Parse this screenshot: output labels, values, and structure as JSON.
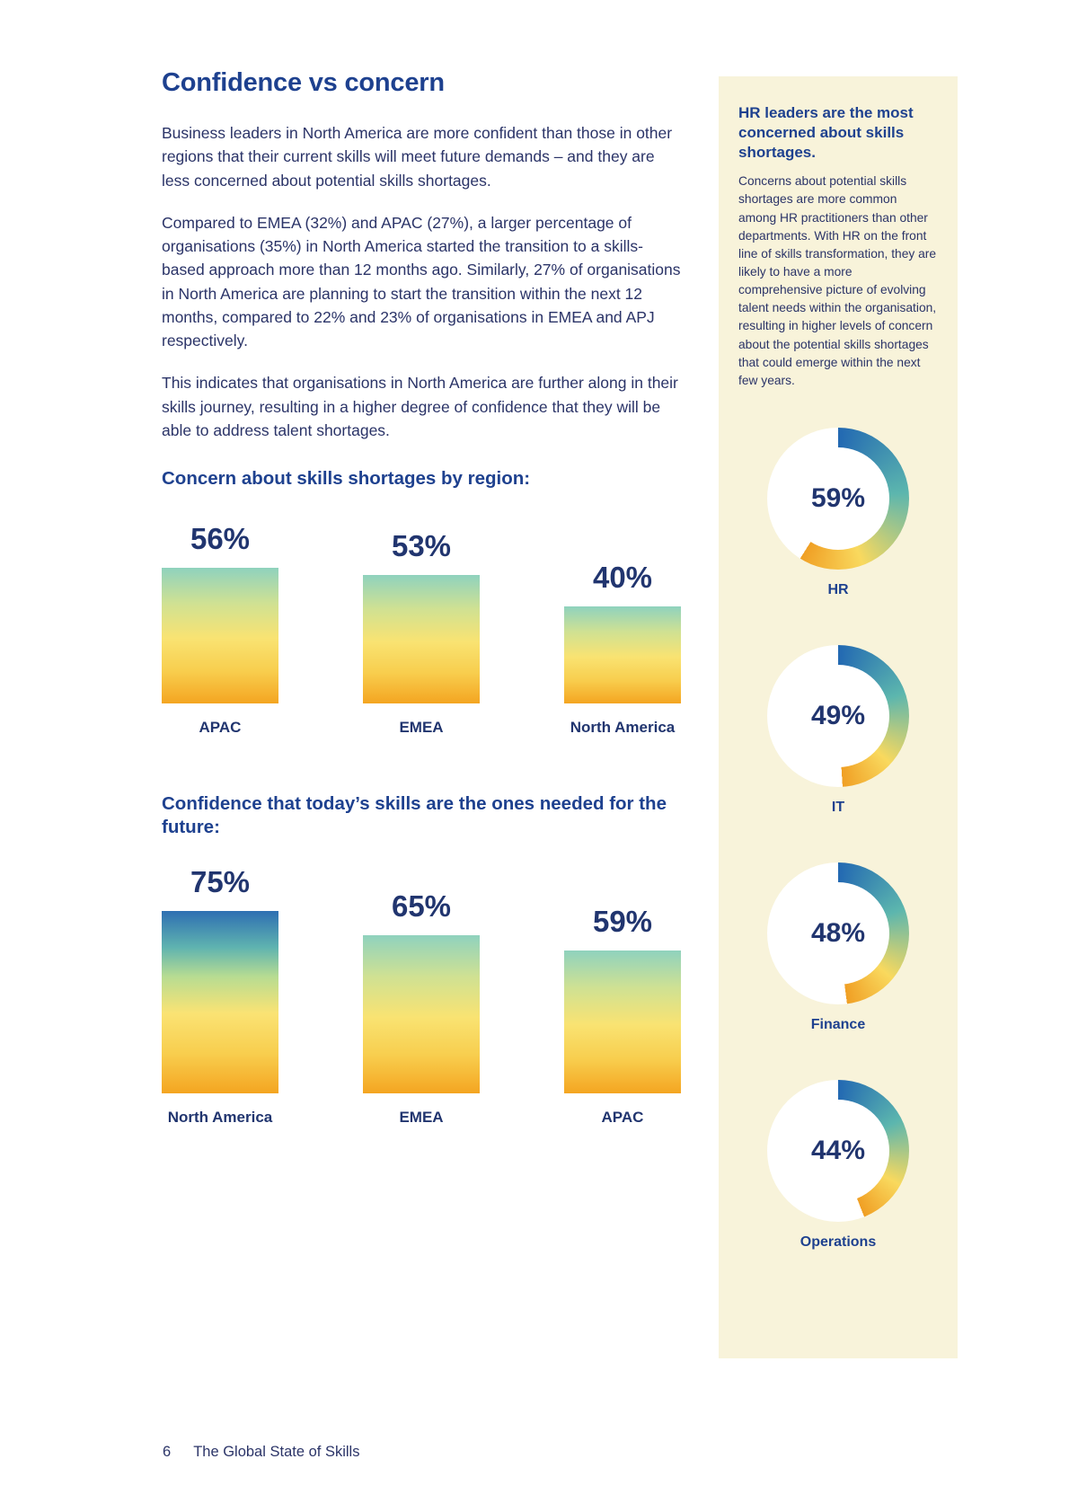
{
  "main": {
    "heading": "Confidence vs concern",
    "paragraphs": [
      "Business leaders in North America are more confident than those in other regions that their current skills will meet future demands – and they are less concerned about potential skills shortages.",
      "Compared to EMEA (32%) and APAC (27%), a larger percentage of organisations (35%) in North America started the transition to a skills-based approach more than 12 months ago. Similarly, 27% of organisations in North America are planning to start the transition within the next 12 months, compared to 22% and 23% of organisations in EMEA and APJ respectively.",
      "This indicates that organisations in North America are further along in their skills journey, resulting in a higher degree of confidence that they will be able to address talent shortages."
    ]
  },
  "chart_data": [
    {
      "type": "bar",
      "title": "Concern about skills shortages by region:",
      "categories": [
        "APAC",
        "EMEA",
        "North America"
      ],
      "values": [
        56,
        53,
        40
      ],
      "display_values": [
        "56%",
        "53%",
        "40%"
      ],
      "unit": "%",
      "ylim": [
        0,
        100
      ],
      "grid": false,
      "legend": "none"
    },
    {
      "type": "bar",
      "title": "Confidence that today’s skills are the ones needed for the future:",
      "categories": [
        "North America",
        "EMEA",
        "APAC"
      ],
      "values": [
        75,
        65,
        59
      ],
      "display_values": [
        "75%",
        "65%",
        "59%"
      ],
      "unit": "%",
      "ylim": [
        0,
        100
      ],
      "grid": false,
      "legend": "none"
    },
    {
      "type": "pie",
      "title": "",
      "categories": [
        "HR",
        "IT",
        "Finance",
        "Operations"
      ],
      "values": [
        59,
        49,
        48,
        44
      ],
      "display_values": [
        "59%",
        "49%",
        "48%",
        "44%"
      ],
      "unit": "%"
    }
  ],
  "sidebar": {
    "heading": "HR leaders are the most concerned about skills shortages.",
    "body": "Concerns about potential skills shortages are more common among HR practitioners than other departments. With HR on the front line of skills transformation, they are likely to have a more comprehensive picture of evolving talent needs within the organisation, resulting in higher levels of concern about the potential skills shortages that could emerge within the next few years.",
    "donuts": [
      {
        "label": "HR",
        "value": 59,
        "display": "59%"
      },
      {
        "label": "IT",
        "value": 49,
        "display": "49%"
      },
      {
        "label": "Finance",
        "value": 48,
        "display": "48%"
      },
      {
        "label": "Operations",
        "value": 44,
        "display": "44%"
      }
    ]
  },
  "footer": {
    "page_number": "6",
    "title": "The Global State of Skills"
  },
  "colors": {
    "heading_blue": "#1e418f",
    "body_navy": "#2b3468",
    "number_navy": "#21356f",
    "sidebar_bg": "#f8f3da",
    "bar_teal_top": "#8fd2be",
    "bar_yellow": "#f9e372",
    "bar_orange": "#f4a521",
    "bar_blue_top": "#2e6fb2",
    "donut_blue": "#2268b2",
    "donut_teal": "#5cb6ae",
    "donut_yellow": "#f9d95e",
    "donut_orange": "#f09f24"
  }
}
